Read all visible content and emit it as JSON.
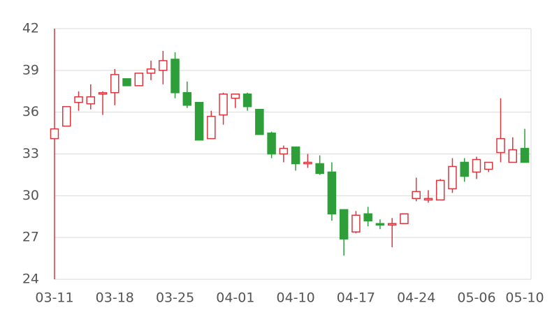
{
  "chart_data": {
    "type": "candlestick",
    "categories": [
      "03-11",
      null,
      null,
      null,
      null,
      "03-18",
      null,
      null,
      null,
      null,
      "03-25",
      null,
      null,
      null,
      null,
      "04-01",
      null,
      null,
      null,
      null,
      "04-10",
      null,
      null,
      null,
      null,
      "04-17",
      null,
      null,
      null,
      null,
      "04-24",
      null,
      null,
      null,
      null,
      "05-06",
      null,
      null,
      null,
      "05-10"
    ],
    "open": [
      34.1,
      35.0,
      36.7,
      36.6,
      37.3,
      37.4,
      38.4,
      37.9,
      38.8,
      39.0,
      39.8,
      37.4,
      36.7,
      34.1,
      35.8,
      37.0,
      37.3,
      36.2,
      34.5,
      33.0,
      33.5,
      32.3,
      32.3,
      31.7,
      29.0,
      27.4,
      28.7,
      28.0,
      27.9,
      28.0,
      29.8,
      29.7,
      29.7,
      30.5,
      32.4,
      31.7,
      31.9,
      33.1,
      32.4,
      33.4
    ],
    "close": [
      34.8,
      36.4,
      37.1,
      37.1,
      37.4,
      38.7,
      37.9,
      38.8,
      39.1,
      39.7,
      37.4,
      36.5,
      34.0,
      35.7,
      37.3,
      37.3,
      36.4,
      34.4,
      33.0,
      33.4,
      32.3,
      32.4,
      31.6,
      28.7,
      26.9,
      28.6,
      28.2,
      27.9,
      28.0,
      28.7,
      30.3,
      29.8,
      31.1,
      32.1,
      31.4,
      32.6,
      32.4,
      34.1,
      33.3,
      32.4
    ],
    "high": [
      42,
      36.4,
      37.5,
      38.0,
      37.5,
      39.1,
      38.4,
      38.8,
      39.7,
      40.4,
      40.3,
      38.2,
      36.7,
      36.1,
      37.4,
      37.3,
      37.4,
      36.2,
      34.6,
      33.6,
      33.5,
      33.0,
      32.9,
      32.4,
      29.0,
      28.9,
      29.2,
      28.3,
      28.4,
      28.7,
      31.3,
      30.4,
      31.2,
      32.7,
      32.7,
      32.8,
      32.4,
      37.0,
      34.2,
      34.8
    ],
    "low": [
      24,
      35.0,
      36.1,
      36.2,
      35.8,
      36.5,
      37.9,
      37.9,
      38.3,
      38.0,
      37.0,
      36.3,
      34.0,
      34.1,
      35.1,
      36.3,
      36.1,
      34.4,
      32.7,
      32.4,
      31.8,
      32.0,
      31.5,
      28.2,
      25.7,
      27.3,
      27.8,
      27.6,
      26.3,
      28.0,
      29.6,
      29.5,
      29.7,
      30.2,
      31.0,
      31.2,
      31.7,
      32.4,
      32.4,
      32.4
    ],
    "up_color": "#d9363e",
    "down_color": "#2e9e3a",
    "ylim": [
      24,
      42
    ],
    "yticks": [
      24,
      27,
      30,
      33,
      36,
      39,
      42
    ],
    "grid": true
  }
}
